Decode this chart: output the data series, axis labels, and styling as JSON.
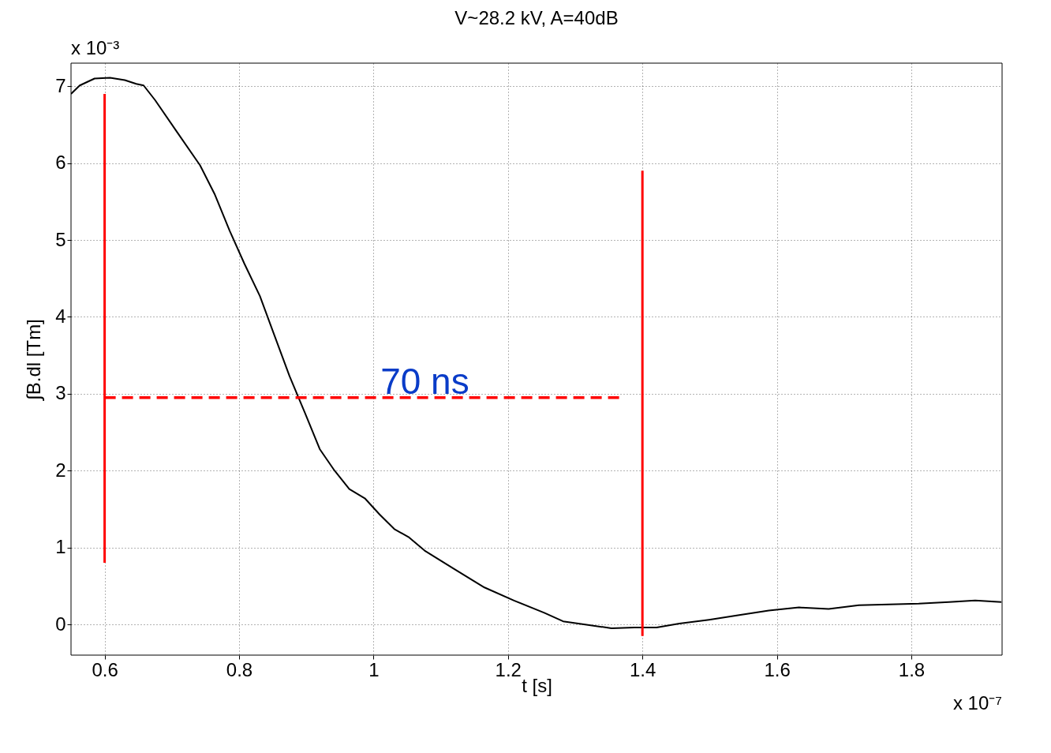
{
  "chart_data": {
    "type": "line",
    "title": "V~28.2 kV, A=40dB",
    "xlabel": "t [s]",
    "ylabel": "∫B.dl [Tm]",
    "xlim": [
      0.55,
      1.935
    ],
    "xticks": [
      0.6,
      0.8,
      1,
      1.2,
      1.4,
      1.6,
      1.8
    ],
    "ylim": [
      -0.4,
      7.3
    ],
    "yticks": [
      0,
      1,
      2,
      3,
      4,
      5,
      6,
      7
    ],
    "grid": true,
    "annotations": [
      "x 10⁻³",
      "x 10⁻⁷",
      "70 ns"
    ],
    "series": [
      {
        "color": "#000000",
        "line_style": "solid",
        "x": [
          0.55,
          0.563,
          0.585,
          0.608,
          0.63,
          0.647,
          0.658,
          0.675,
          0.708,
          0.742,
          0.764,
          0.786,
          0.808,
          0.831,
          0.853,
          0.875,
          0.898,
          0.92,
          0.942,
          0.964,
          0.987,
          1.009,
          1.031,
          1.053,
          1.076,
          1.12,
          1.165,
          1.209,
          1.254,
          1.282,
          1.321,
          1.354,
          1.388,
          1.421,
          1.455,
          1.499,
          1.544,
          1.588,
          1.633,
          1.677,
          1.722,
          1.767,
          1.811,
          1.856,
          1.895,
          1.934
        ],
        "values": [
          6.9,
          7.01,
          7.1,
          7.11,
          7.08,
          7.03,
          7.01,
          6.82,
          6.4,
          5.97,
          5.59,
          5.12,
          4.69,
          4.27,
          3.75,
          3.23,
          2.75,
          2.28,
          2.0,
          1.76,
          1.64,
          1.43,
          1.24,
          1.13,
          0.96,
          0.72,
          0.48,
          0.31,
          0.15,
          0.04,
          -0.01,
          -0.05,
          -0.04,
          -0.04,
          0.01,
          0.06,
          0.12,
          0.18,
          0.22,
          0.2,
          0.25,
          0.26,
          0.27,
          0.29,
          0.31,
          0.29
        ]
      },
      {
        "color": "#ff0000",
        "line_style": "solid",
        "x": [
          0.6,
          0.6
        ],
        "values": [
          0.8,
          6.9
        ]
      },
      {
        "color": "#ff0000",
        "line_style": "solid",
        "x": [
          1.4,
          1.4
        ],
        "values": [
          -0.15,
          5.9
        ]
      },
      {
        "color": "#ff0000",
        "line_style": "dashed",
        "x": [
          0.6,
          1.37
        ],
        "values": [
          2.95,
          2.95
        ]
      }
    ]
  }
}
